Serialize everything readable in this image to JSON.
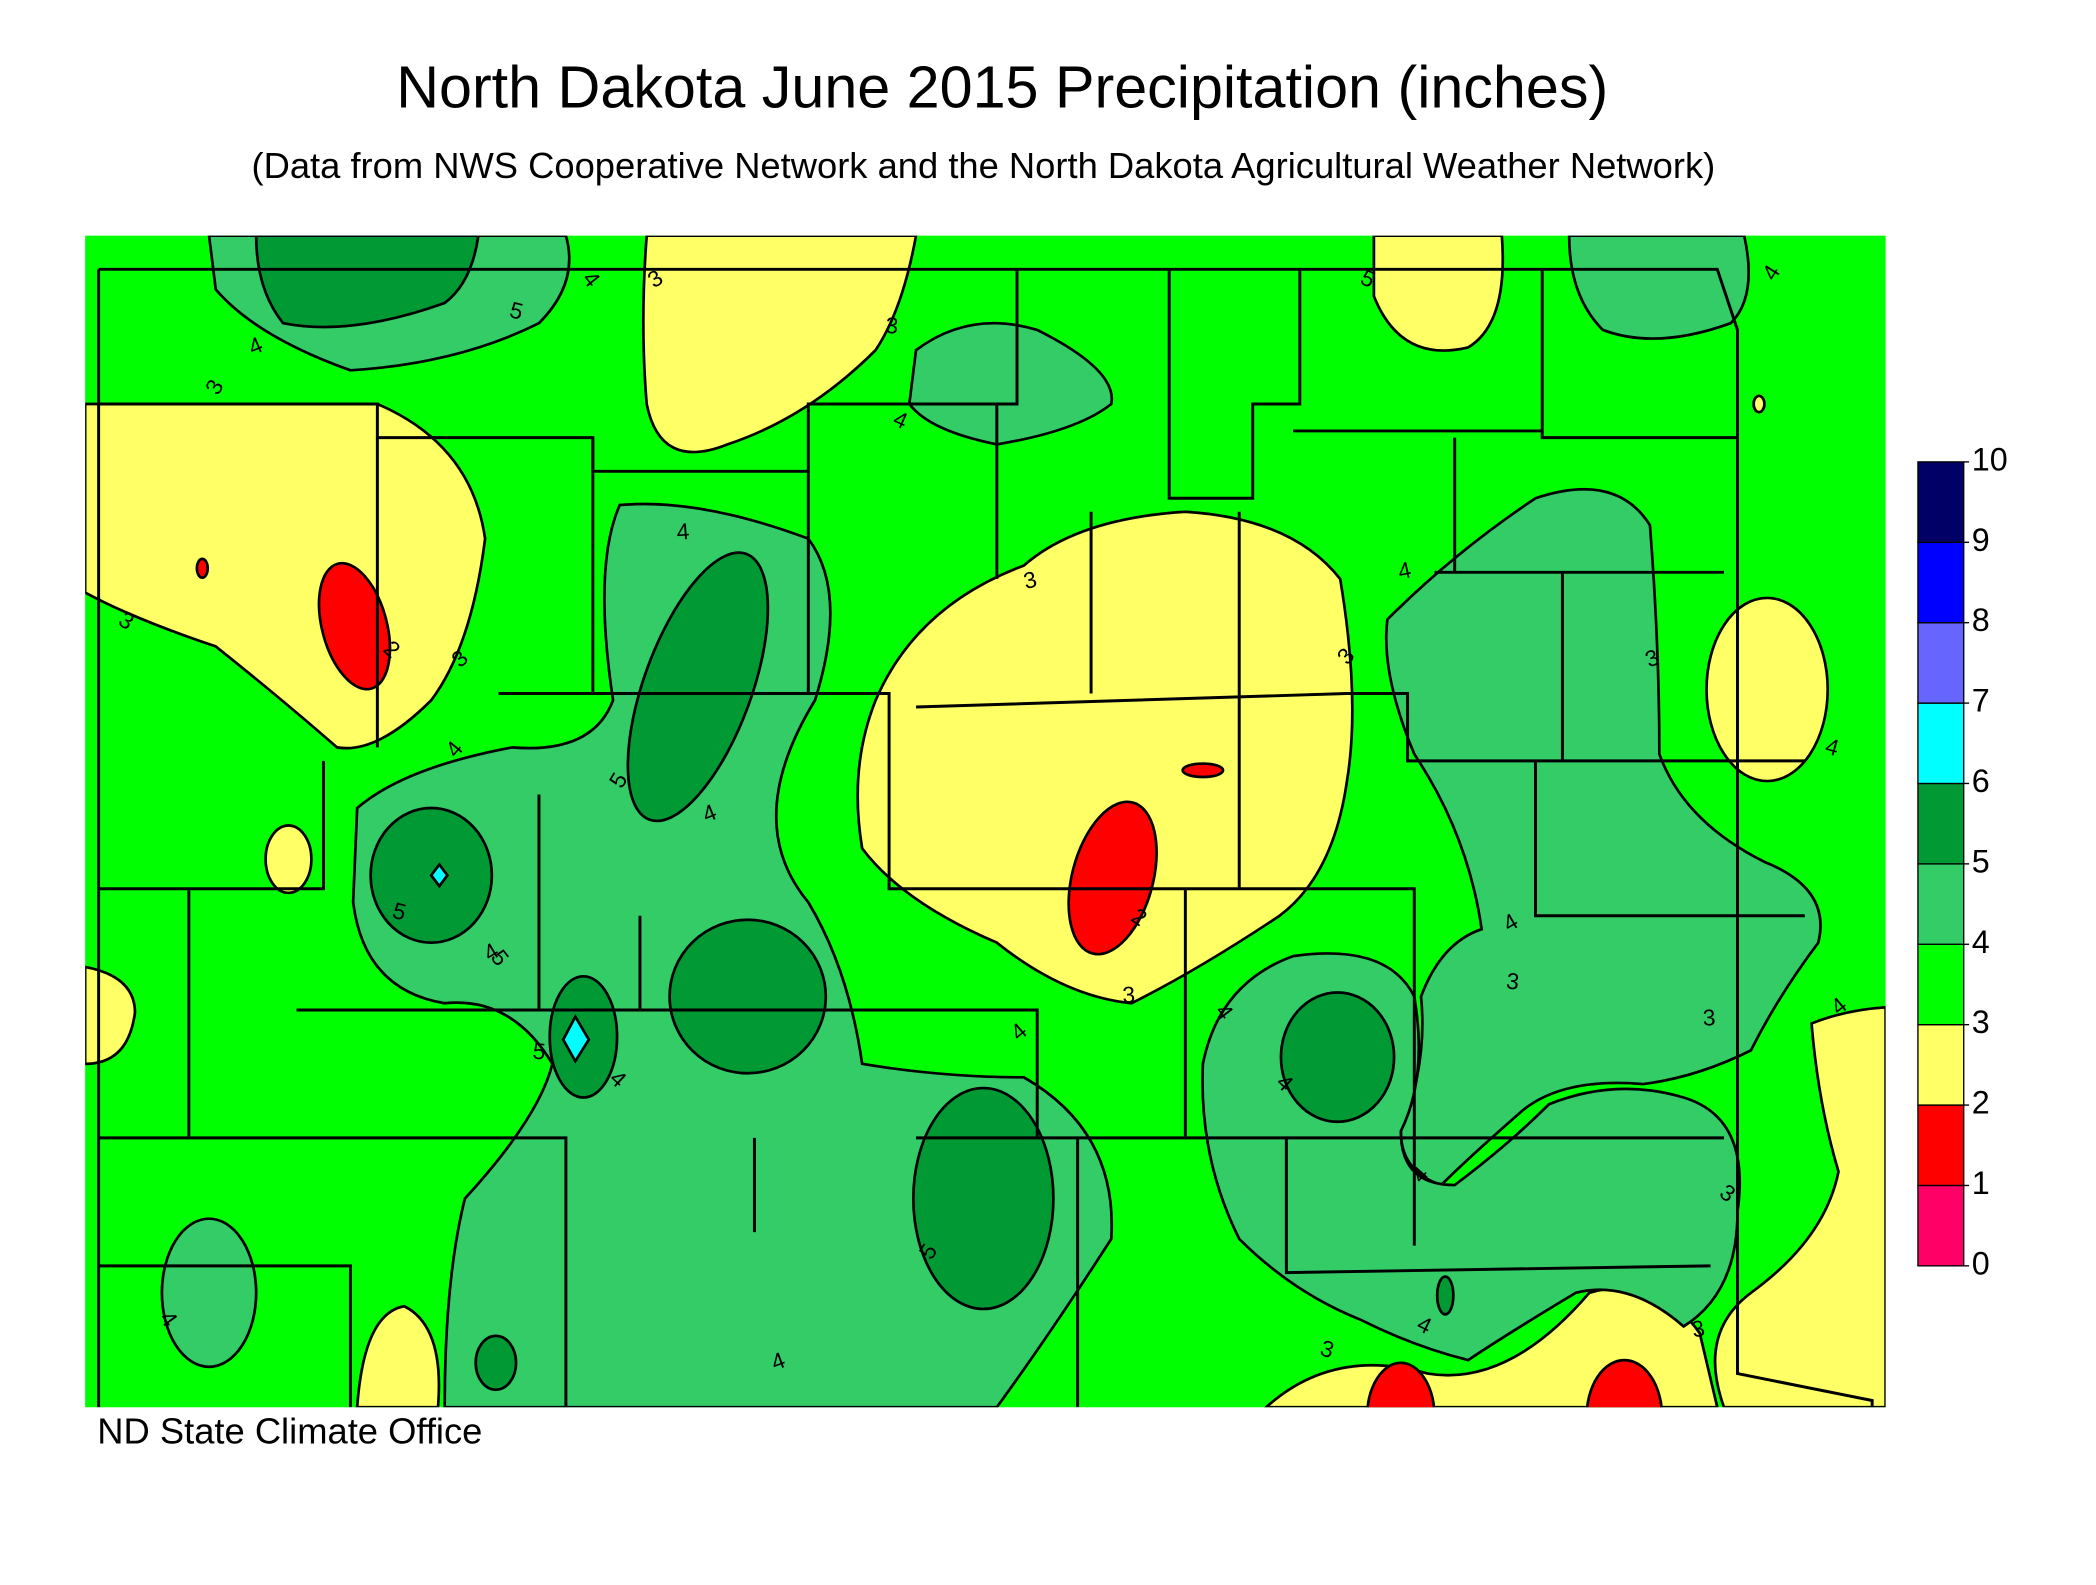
{
  "title": "North Dakota June 2015 Precipitation (inches)",
  "subtitle": "(Data from NWS Cooperative Network and the North Dakota Agricultural Weather Network)",
  "footer": "ND State Climate Office",
  "legend": {
    "levels": [
      0,
      1,
      2,
      3,
      4,
      5,
      6,
      7,
      8,
      9,
      10
    ],
    "colors": [
      "#ff0066",
      "#ff0000",
      "#ffff66",
      "#00ff00",
      "#33cc66",
      "#009933",
      "#00ffff",
      "#6666ff",
      "#0000ff",
      "#000066"
    ]
  },
  "map": {
    "contour_labels": [
      3,
      4,
      5,
      4,
      3,
      3,
      2,
      3,
      4,
      3,
      4,
      3,
      4,
      5,
      4,
      5,
      5,
      4,
      5,
      4,
      4,
      3,
      2,
      3,
      4,
      5,
      4,
      3,
      4,
      4,
      4,
      3,
      4,
      4,
      3,
      3,
      4,
      3,
      4,
      5,
      4,
      3,
      4
    ]
  }
}
